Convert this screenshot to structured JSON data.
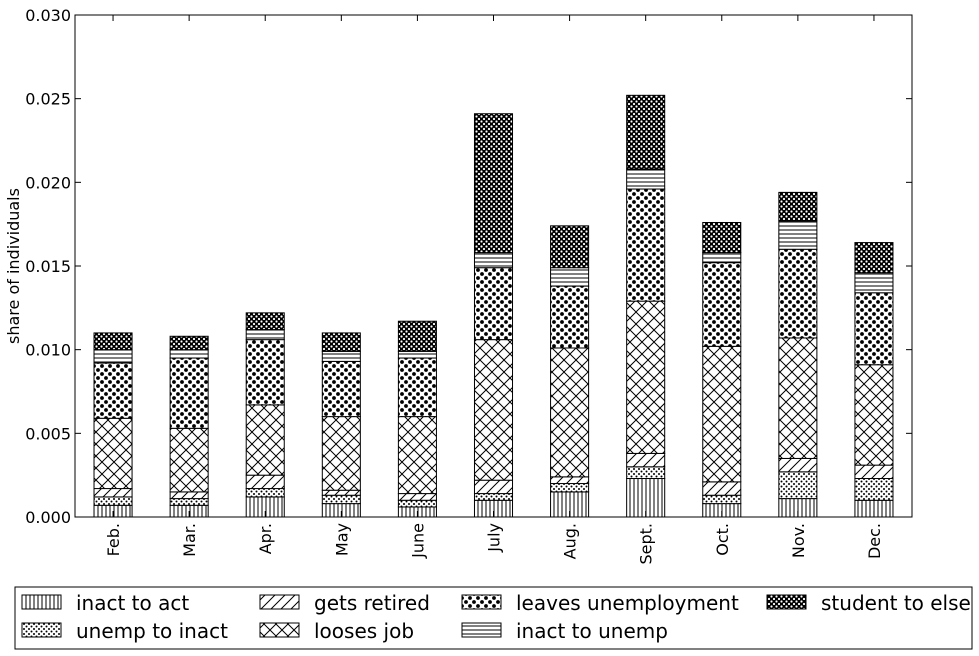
{
  "chart_data": {
    "type": "bar",
    "stacked": true,
    "title": "",
    "xlabel": "",
    "ylabel": "share of individuals",
    "ylim": [
      0,
      0.03
    ],
    "yticks": [
      "0.000",
      "0.005",
      "0.010",
      "0.015",
      "0.020",
      "0.025",
      "0.030"
    ],
    "categories": [
      "Feb.",
      "Mar.",
      "Apr.",
      "May",
      "June",
      "July",
      "Aug.",
      "Sept.",
      "Oct.",
      "Nov.",
      "Dec."
    ],
    "series": [
      {
        "name": "inact to act",
        "pattern": "vertical-lines",
        "values": [
          0.0007,
          0.0007,
          0.0012,
          0.0008,
          0.0006,
          0.001,
          0.0015,
          0.0023,
          0.0008,
          0.0011,
          0.001
        ]
      },
      {
        "name": "unemp to inact",
        "pattern": "small-dots",
        "values": [
          0.0005,
          0.0004,
          0.0005,
          0.0005,
          0.0004,
          0.0004,
          0.0005,
          0.0007,
          0.0005,
          0.0016,
          0.0013
        ]
      },
      {
        "name": "gets retired",
        "pattern": "diagonal-lines",
        "values": [
          0.0005,
          0.0004,
          0.0008,
          0.0003,
          0.0004,
          0.0008,
          0.0004,
          0.0008,
          0.0008,
          0.0008,
          0.0008
        ]
      },
      {
        "name": "looses job",
        "pattern": "crosshatch",
        "values": [
          0.0042,
          0.0038,
          0.0042,
          0.0044,
          0.0046,
          0.0084,
          0.0077,
          0.0091,
          0.0081,
          0.0072,
          0.006
        ]
      },
      {
        "name": "leaves unemployment",
        "pattern": "large-dots",
        "values": [
          0.0033,
          0.0042,
          0.0039,
          0.0033,
          0.0035,
          0.0043,
          0.0037,
          0.0067,
          0.005,
          0.0053,
          0.0043
        ]
      },
      {
        "name": "inact to unemp",
        "pattern": "horizontal-lines",
        "values": [
          0.0008,
          0.0005,
          0.0006,
          0.0006,
          0.0004,
          0.0009,
          0.0011,
          0.0012,
          0.0006,
          0.0017,
          0.0012
        ]
      },
      {
        "name": "student to else",
        "pattern": "dense-dots",
        "values": [
          0.001,
          0.0008,
          0.001,
          0.0011,
          0.0018,
          0.0083,
          0.0025,
          0.0044,
          0.0018,
          0.0017,
          0.0018
        ]
      }
    ],
    "legend_position": "bottom",
    "grid": false
  },
  "colors": {
    "background": "#ffffff",
    "axis": "#000000",
    "bar_fill": "#ffffff",
    "pattern": "#000000"
  }
}
